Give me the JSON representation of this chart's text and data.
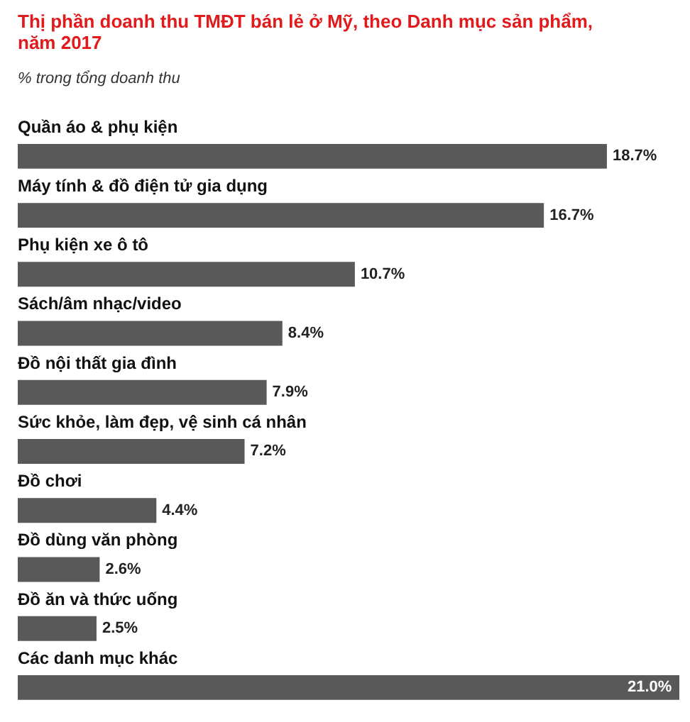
{
  "chart_data": {
    "type": "bar",
    "orientation": "horizontal",
    "title": "Thị phần doanh thu TMĐT bán lẻ ở Mỹ, theo Danh mục sản phẩm, năm 2017",
    "subtitle": "% trong tổng doanh thu",
    "categories": [
      "Quần áo & phụ kiện",
      "Máy tính & đồ điện tử gia dụng",
      "Phụ kiện xe ô tô",
      "Sách/âm nhạc/video",
      "Đồ nội thất gia đình",
      "Sức khỏe, làm đẹp, vệ sinh cá nhân",
      "Đồ chơi",
      "Đồ dùng văn phòng",
      "Đồ ăn và thức uống",
      "Các danh mục khác"
    ],
    "values": [
      18.7,
      16.7,
      10.7,
      8.4,
      7.9,
      7.2,
      4.4,
      2.6,
      2.5,
      21.0
    ],
    "value_labels": [
      "18.7%",
      "16.7%",
      "10.7%",
      "8.4%",
      "7.9%",
      "7.2%",
      "4.4%",
      "2.6%",
      "2.5%",
      "21.0%"
    ],
    "color": "#595959",
    "xlim": [
      0,
      21.0
    ],
    "tick_labels": false,
    "grid": false
  }
}
